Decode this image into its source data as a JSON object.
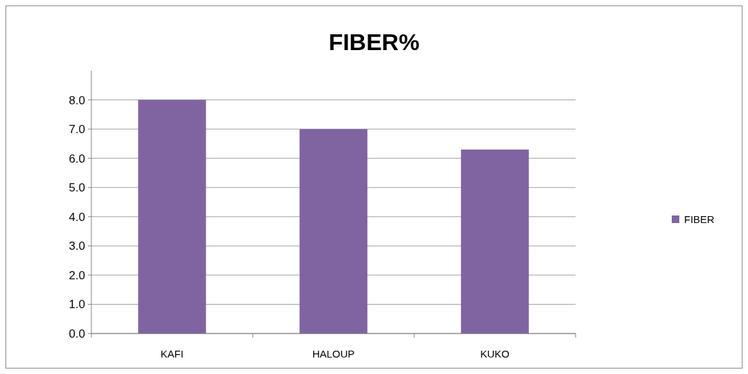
{
  "chart_data": {
    "type": "bar",
    "title": "FIBER%",
    "categories": [
      "KAFI",
      "HALOUP",
      "KUKO"
    ],
    "series": [
      {
        "name": "FIBER",
        "color": "#8064a2",
        "values": [
          8.0,
          7.0,
          6.3
        ]
      }
    ],
    "ylim": [
      0,
      9
    ],
    "yticks": [
      {
        "value": 0,
        "label": "0.0"
      },
      {
        "value": 1,
        "label": "1.0"
      },
      {
        "value": 2,
        "label": "2.0"
      },
      {
        "value": 3,
        "label": "3.0"
      },
      {
        "value": 4,
        "label": "4.0"
      },
      {
        "value": 5,
        "label": "5.0"
      },
      {
        "value": 6,
        "label": "6.0"
      },
      {
        "value": 7,
        "label": "7.0"
      },
      {
        "value": 8,
        "label": "8.0"
      }
    ],
    "grid": "y",
    "legend": "right"
  }
}
